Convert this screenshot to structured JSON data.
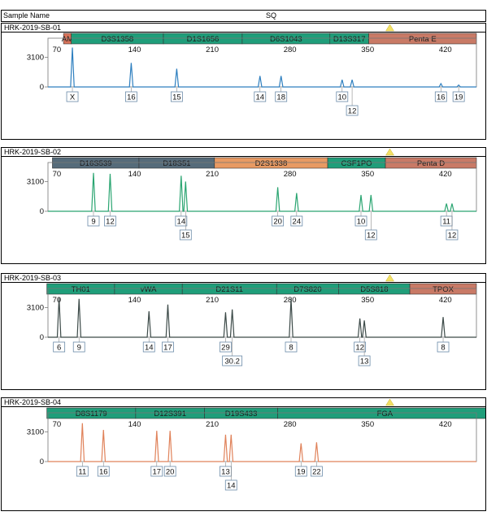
{
  "header": {
    "sample_name_label": "Sample Name",
    "column_label": "SQ"
  },
  "chart_data": [
    {
      "type": "line",
      "title": "HRK-2019-SB-01",
      "x_ticks": [
        70,
        140,
        210,
        280,
        350,
        420
      ],
      "xlim": [
        62,
        448
      ],
      "y_ticks": [
        3100,
        0
      ],
      "ylim": [
        0,
        4400
      ],
      "color": "#2e7fbf",
      "markers": [
        {
          "label": "AM",
          "start": 76,
          "end": 83,
          "color": "#d9735a"
        },
        {
          "label": "D3S1358",
          "start": 83,
          "end": 166,
          "color": "#1f9e7a"
        },
        {
          "label": "D1S1656",
          "start": 166,
          "end": 237,
          "color": "#1f9e7a"
        },
        {
          "label": "D6S1043",
          "start": 237,
          "end": 316,
          "color": "#1f9e7a"
        },
        {
          "label": "D13S317",
          "start": 316,
          "end": 351,
          "color": "#1f9e7a"
        },
        {
          "label": "Penta E",
          "start": 351,
          "end": 448,
          "color": "#c97a66"
        }
      ],
      "peaks": [
        {
          "x": 84,
          "height": 4100,
          "label": "X",
          "row": 0
        },
        {
          "x": 137,
          "height": 2500,
          "label": "16",
          "row": 0
        },
        {
          "x": 178,
          "height": 1900,
          "label": "15",
          "row": 0
        },
        {
          "x": 253,
          "height": 1150,
          "label": "14",
          "row": 0
        },
        {
          "x": 272,
          "height": 1150,
          "label": "18",
          "row": 0
        },
        {
          "x": 327,
          "height": 750,
          "label": "10",
          "row": 0
        },
        {
          "x": 336,
          "height": 750,
          "label": "12",
          "row": 1
        },
        {
          "x": 416,
          "height": 350,
          "label": "16",
          "row": 0
        },
        {
          "x": 432,
          "height": 200,
          "label": "19",
          "row": 0
        }
      ]
    },
    {
      "type": "line",
      "title": "HRK-2019-SB-02",
      "x_ticks": [
        70,
        140,
        210,
        280,
        350,
        420
      ],
      "xlim": [
        62,
        448
      ],
      "y_ticks": [
        3100,
        0
      ],
      "ylim": [
        0,
        4400
      ],
      "color": "#2aa571",
      "markers": [
        {
          "label": "D16S539",
          "start": 66,
          "end": 144,
          "color": "#556b7a"
        },
        {
          "label": "D18S51",
          "start": 144,
          "end": 212,
          "color": "#556b7a"
        },
        {
          "label": "D2S1338",
          "start": 212,
          "end": 314,
          "color": "#e89a63"
        },
        {
          "label": "CSF1PO",
          "start": 314,
          "end": 366,
          "color": "#1f9e7a"
        },
        {
          "label": "Penta D",
          "start": 366,
          "end": 448,
          "color": "#c97a66"
        }
      ],
      "peaks": [
        {
          "x": 103,
          "height": 4000,
          "label": "9",
          "row": 0
        },
        {
          "x": 118,
          "height": 3900,
          "label": "12",
          "row": 0
        },
        {
          "x": 182,
          "height": 3700,
          "label": "14",
          "row": 0
        },
        {
          "x": 186,
          "height": 3100,
          "label": "15",
          "row": 1
        },
        {
          "x": 269,
          "height": 2500,
          "label": "20",
          "row": 0
        },
        {
          "x": 286,
          "height": 1900,
          "label": "24",
          "row": 0
        },
        {
          "x": 344,
          "height": 1700,
          "label": "10",
          "row": 0
        },
        {
          "x": 353,
          "height": 1700,
          "label": "12",
          "row": 1
        },
        {
          "x": 421,
          "height": 800,
          "label": "11",
          "row": 0
        },
        {
          "x": 426,
          "height": 800,
          "label": "12",
          "row": 1
        }
      ]
    },
    {
      "type": "line",
      "title": "HRK-2019-SB-03",
      "x_ticks": [
        70,
        140,
        210,
        280,
        350,
        420
      ],
      "xlim": [
        62,
        448
      ],
      "y_ticks": [
        3100,
        0
      ],
      "ylim": [
        0,
        4400
      ],
      "color": "#3c4a48",
      "markers": [
        {
          "label": "TH01",
          "start": 61,
          "end": 122,
          "color": "#1f9e7a"
        },
        {
          "label": "vWA",
          "start": 122,
          "end": 183,
          "color": "#1f9e7a"
        },
        {
          "label": "D21S11",
          "start": 183,
          "end": 268,
          "color": "#1f9e7a"
        },
        {
          "label": "D7S820",
          "start": 268,
          "end": 324,
          "color": "#1f9e7a"
        },
        {
          "label": "D5S818",
          "start": 324,
          "end": 388,
          "color": "#1f9e7a"
        },
        {
          "label": "TPOX",
          "start": 388,
          "end": 448,
          "color": "#c97a66"
        }
      ],
      "peaks": [
        {
          "x": 72,
          "height": 4100,
          "label": "6",
          "row": 0
        },
        {
          "x": 90,
          "height": 4000,
          "label": "9",
          "row": 0
        },
        {
          "x": 153,
          "height": 2700,
          "label": "14",
          "row": 0
        },
        {
          "x": 170,
          "height": 3400,
          "label": "17",
          "row": 0
        },
        {
          "x": 222,
          "height": 2600,
          "label": "29",
          "row": 0
        },
        {
          "x": 228,
          "height": 2900,
          "label": "30.2",
          "row": 1
        },
        {
          "x": 281,
          "height": 4000,
          "label": "8",
          "row": 0
        },
        {
          "x": 343,
          "height": 1950,
          "label": "12",
          "row": 0
        },
        {
          "x": 347,
          "height": 1750,
          "label": "13",
          "row": 1
        },
        {
          "x": 418,
          "height": 2100,
          "label": "8",
          "row": 0
        }
      ]
    },
    {
      "type": "line",
      "title": "HRK-2019-SB-04",
      "x_ticks": [
        70,
        140,
        210,
        280,
        350,
        420
      ],
      "xlim": [
        62,
        448
      ],
      "y_ticks": [
        3100,
        0
      ],
      "ylim": [
        0,
        4400
      ],
      "color": "#e0825a",
      "markers": [
        {
          "label": "D8S1179",
          "start": 61,
          "end": 141,
          "color": "#1f9e7a"
        },
        {
          "label": "D12S391",
          "start": 141,
          "end": 203,
          "color": "#1f9e7a"
        },
        {
          "label": "D19S433",
          "start": 203,
          "end": 269,
          "color": "#1f9e7a"
        },
        {
          "label": "FGA",
          "start": 269,
          "end": 462,
          "color": "#1f9e7a"
        }
      ],
      "peaks": [
        {
          "x": 93,
          "height": 4000,
          "label": "11",
          "row": 0
        },
        {
          "x": 112,
          "height": 3300,
          "label": "16",
          "row": 0
        },
        {
          "x": 160,
          "height": 3200,
          "label": "17",
          "row": 0
        },
        {
          "x": 172,
          "height": 3200,
          "label": "20",
          "row": 0
        },
        {
          "x": 222,
          "height": 2800,
          "label": "13",
          "row": 0
        },
        {
          "x": 227,
          "height": 2800,
          "label": "14",
          "row": 1
        },
        {
          "x": 290,
          "height": 1900,
          "label": "19",
          "row": 0
        },
        {
          "x": 304,
          "height": 2000,
          "label": "22",
          "row": 0
        }
      ]
    }
  ]
}
